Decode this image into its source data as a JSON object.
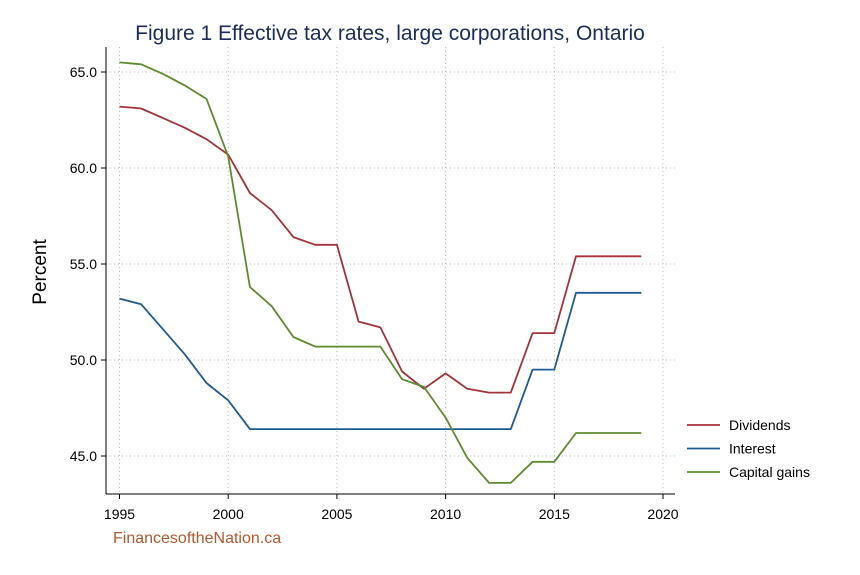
{
  "chart_data": {
    "type": "line",
    "title": "Figure 1   Effective tax rates, large corporations, Ontario",
    "xlabel": "",
    "ylabel": "Percent",
    "xlim": [
      1995,
      2020
    ],
    "ylim": [
      43.2,
      66.4
    ],
    "x_ticks": [
      1995,
      2000,
      2005,
      2010,
      2015,
      2020
    ],
    "y_ticks": [
      45.0,
      50.0,
      55.0,
      60.0,
      65.0
    ],
    "y_tick_labels": [
      "45.0",
      "50.0",
      "55.0",
      "60.0",
      "65.0"
    ],
    "grid": true,
    "legend_position": "right",
    "x": [
      1995,
      1996,
      1997,
      1998,
      1999,
      2000,
      2001,
      2002,
      2003,
      2004,
      2005,
      2006,
      2007,
      2008,
      2009,
      2010,
      2011,
      2012,
      2013,
      2014,
      2015,
      2016,
      2017,
      2018,
      2019
    ],
    "series": [
      {
        "name": "Dividends",
        "color": "#a3333a",
        "values": [
          63.2,
          63.1,
          62.6,
          62.1,
          61.5,
          60.7,
          58.7,
          57.8,
          56.4,
          56.0,
          56.0,
          52.0,
          51.7,
          49.4,
          48.5,
          49.3,
          48.5,
          48.3,
          48.3,
          51.4,
          51.4,
          55.4,
          55.4,
          55.4,
          55.4
        ]
      },
      {
        "name": "Interest",
        "color": "#1f5a91",
        "values": [
          53.2,
          52.9,
          51.6,
          50.3,
          48.8,
          47.9,
          46.4,
          46.4,
          46.4,
          46.4,
          46.4,
          46.4,
          46.4,
          46.4,
          46.4,
          46.4,
          46.4,
          46.4,
          46.4,
          49.5,
          49.5,
          53.5,
          53.5,
          53.5,
          53.5
        ]
      },
      {
        "name": "Capital gains",
        "color": "#5e8b2e",
        "values": [
          65.5,
          65.4,
          64.9,
          64.3,
          63.6,
          60.6,
          53.8,
          52.8,
          51.2,
          50.7,
          50.7,
          50.7,
          50.7,
          49.0,
          48.6,
          47.0,
          44.9,
          43.6,
          43.6,
          44.7,
          44.7,
          46.2,
          46.2,
          46.2,
          46.2
        ]
      }
    ]
  },
  "source_text": "FinancesoftheNation.ca"
}
